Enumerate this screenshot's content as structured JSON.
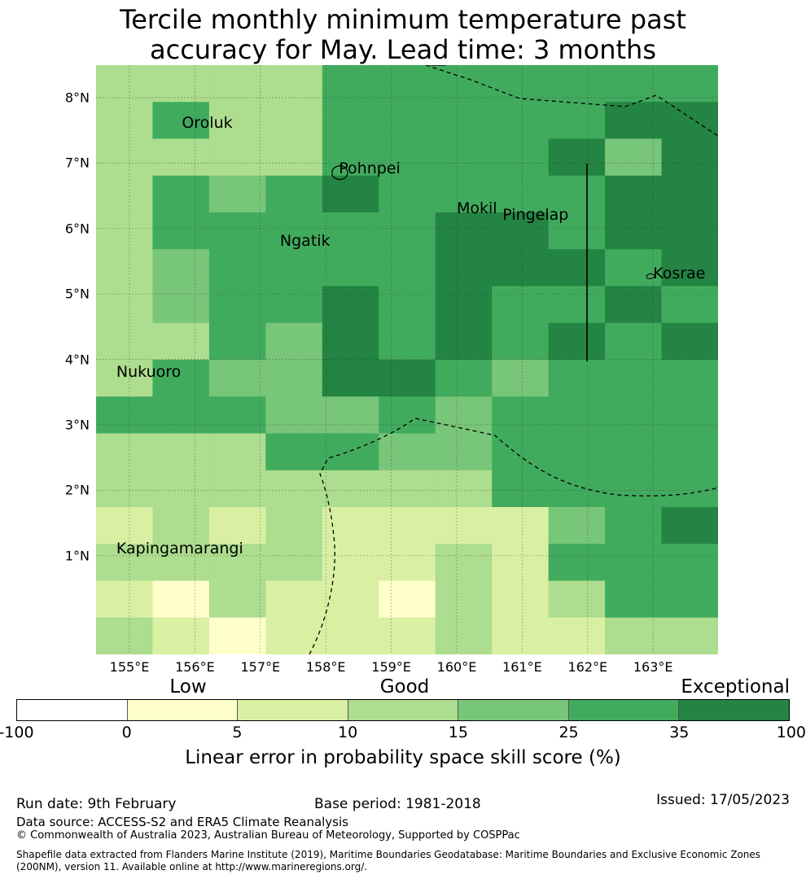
{
  "title": {
    "line1": "Tercile monthly minimum temperature past",
    "line2": "accuracy for May. Lead time: 3 months"
  },
  "map": {
    "lat_labels": [
      "8°N",
      "7°N",
      "6°N",
      "5°N",
      "4°N",
      "3°N",
      "2°N",
      "1°N"
    ],
    "lon_labels": [
      "155°E",
      "156°E",
      "157°E",
      "158°E",
      "159°E",
      "160°E",
      "161°E",
      "162°E",
      "163°E"
    ],
    "lon_range": [
      154.5,
      164.0
    ],
    "lat_range": [
      -0.5,
      8.5
    ],
    "places": [
      {
        "name": "Oroluk",
        "lon": 155.8,
        "lat": 7.6
      },
      {
        "name": "Pohnpei",
        "lon": 158.2,
        "lat": 6.9
      },
      {
        "name": "Mokil",
        "lon": 160.0,
        "lat": 6.3
      },
      {
        "name": "Pingelap",
        "lon": 160.7,
        "lat": 6.2
      },
      {
        "name": "Ngatik",
        "lon": 157.3,
        "lat": 5.8
      },
      {
        "name": "Kosrae",
        "lon": 163.0,
        "lat": 5.3
      },
      {
        "name": "Nukuoro",
        "lon": 154.8,
        "lat": 3.8
      },
      {
        "name": "Kapingamarangi",
        "lon": 154.8,
        "lat": 1.1
      }
    ],
    "grid_cells": {
      "description_rows_top_to_bottom": "skill class index 0..6 per 0.83deg cell",
      "rows": [
        [
          3,
          3,
          3,
          3,
          5,
          5,
          5,
          5,
          5,
          5,
          5
        ],
        [
          3,
          5,
          3,
          3,
          5,
          5,
          5,
          5,
          5,
          6,
          6
        ],
        [
          3,
          3,
          3,
          3,
          5,
          5,
          5,
          5,
          6,
          4,
          6
        ],
        [
          3,
          5,
          4,
          5,
          6,
          5,
          5,
          5,
          5,
          6,
          6
        ],
        [
          3,
          5,
          5,
          5,
          5,
          5,
          6,
          6,
          5,
          6,
          6
        ],
        [
          3,
          4,
          5,
          5,
          5,
          5,
          6,
          6,
          6,
          5,
          6
        ],
        [
          3,
          4,
          5,
          5,
          6,
          5,
          6,
          5,
          5,
          6,
          5
        ],
        [
          3,
          3,
          5,
          4,
          6,
          5,
          6,
          5,
          6,
          5,
          6
        ],
        [
          3,
          5,
          4,
          4,
          6,
          6,
          5,
          4,
          5,
          5,
          5
        ],
        [
          5,
          5,
          5,
          4,
          4,
          5,
          4,
          5,
          5,
          5,
          5
        ],
        [
          3,
          3,
          3,
          5,
          5,
          4,
          4,
          5,
          5,
          5,
          5
        ],
        [
          3,
          3,
          3,
          3,
          3,
          3,
          3,
          5,
          5,
          5,
          5
        ],
        [
          2,
          3,
          2,
          3,
          2,
          2,
          2,
          2,
          4,
          5,
          6
        ],
        [
          3,
          3,
          3,
          3,
          2,
          2,
          3,
          2,
          5,
          5,
          5
        ],
        [
          2,
          1,
          3,
          2,
          2,
          1,
          3,
          2,
          3,
          5,
          5
        ],
        [
          3,
          2,
          1,
          2,
          2,
          2,
          3,
          2,
          2,
          3,
          3
        ]
      ]
    }
  },
  "colorbar": {
    "categories": [
      {
        "label": "Low",
        "at": 5
      },
      {
        "label": "Good",
        "at": 15
      },
      {
        "label": "Exceptional",
        "at": 35
      }
    ],
    "bins": [
      {
        "from": -100,
        "to": 0,
        "color": "#ffffff"
      },
      {
        "from": 0,
        "to": 5,
        "color": "#ffffcc"
      },
      {
        "from": 5,
        "to": 10,
        "color": "#d9f0a3"
      },
      {
        "from": 10,
        "to": 15,
        "color": "#addd8e"
      },
      {
        "from": 15,
        "to": 25,
        "color": "#78c679"
      },
      {
        "from": 25,
        "to": 35,
        "color": "#41ab5d"
      },
      {
        "from": 35,
        "to": 100,
        "color": "#238443"
      }
    ],
    "ticks": [
      "-100",
      "0",
      "5",
      "10",
      "15",
      "25",
      "35",
      "100"
    ],
    "label": "Linear error in probability space skill score (%)"
  },
  "footer": {
    "run_date": "Run date: 9th February",
    "base_period": "Base period: 1981-2018",
    "issued": "Issued: 17/05/2023",
    "data_source": "Data source: ACCESS-S2 and ERA5 Climate Reanalysis",
    "copyright": "© Commonwealth of Australia 2023, Australian Bureau of Meteorology, Supported by COSPPac",
    "shapefile_line1": "Shapefile data extracted from Flanders Marine Institute (2019), Maritime Boundaries Geodatabase: Maritime Boundaries and Exclusive Economic Zones",
    "shapefile_line2": "(200NM), version 11. Available online at http://www.marineregions.org/."
  }
}
